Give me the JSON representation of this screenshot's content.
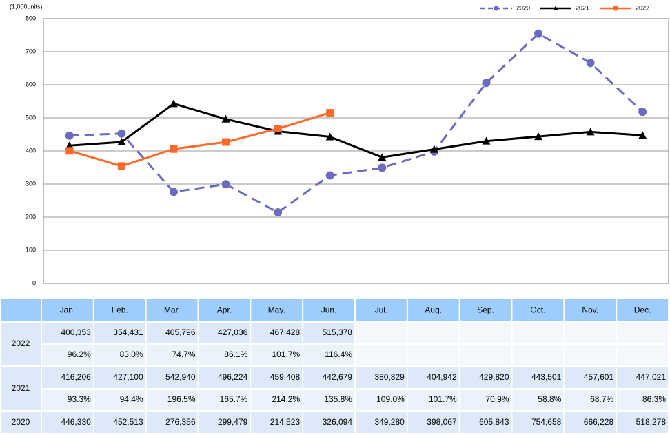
{
  "chart_data": {
    "type": "line",
    "y_label": "(1,000units)",
    "categories": [
      "Jan.",
      "Feb.",
      "Mar.",
      "Apr.",
      "May.",
      "Jun.",
      "Jul.",
      "Aug.",
      "Sep.",
      "Oct.",
      "Nov.",
      "Dec."
    ],
    "ylim": [
      0,
      800
    ],
    "yticks": [
      0,
      100,
      200,
      300,
      400,
      500,
      600,
      700,
      800
    ],
    "grid": true,
    "legend": "top-right",
    "series": [
      {
        "name": "2020",
        "color": "#6b6bc0",
        "dash": true,
        "marker": "circle",
        "values": [
          446.33,
          452.513,
          276.356,
          299.479,
          214.523,
          326.094,
          349.28,
          398.067,
          605.843,
          754.658,
          666.228,
          518.278
        ],
        "value_labels": [
          "446,330",
          "452,513",
          "276,356",
          "299,479",
          "214,523",
          "326,094",
          "349,280",
          "398,067",
          "605,843",
          "754,658",
          "666,228",
          "518,278"
        ]
      },
      {
        "name": "2021",
        "color": "#000000",
        "dash": false,
        "marker": "triangle",
        "values": [
          416.206,
          427.1,
          542.94,
          496.224,
          459.408,
          442.679,
          380.829,
          404.942,
          429.82,
          443.501,
          457.601,
          447.021
        ],
        "value_labels": [
          "416,206",
          "427,100",
          "542,940",
          "496,224",
          "459,408",
          "442,679",
          "380,829",
          "404,942",
          "429,820",
          "443,501",
          "457,601",
          "447,021"
        ]
      },
      {
        "name": "2022",
        "color": "#ff6a2a",
        "dash": false,
        "marker": "square",
        "values": [
          400.353,
          354.431,
          405.796,
          427.036,
          467.428,
          515.378,
          null,
          null,
          null,
          null,
          null,
          null
        ],
        "value_labels": [
          "400,353",
          "354,431",
          "405,796",
          "427,036",
          "467,428",
          "515,378",
          null,
          null,
          null,
          null,
          null,
          null
        ]
      }
    ]
  },
  "table": {
    "ratios": [
      {
        "series": 2,
        "values": [
          "96.2%",
          "83.0%",
          "74.7%",
          "86.1%",
          "101.7%",
          "116.4%",
          null,
          null,
          null,
          null,
          null,
          null
        ]
      },
      {
        "series": 1,
        "values": [
          "93.3%",
          "94.4%",
          "196.5%",
          "165.7%",
          "214.2%",
          "135.8%",
          "109.0%",
          "101.7%",
          "70.9%",
          "58.8%",
          "68.7%",
          "86.3%"
        ]
      }
    ]
  }
}
